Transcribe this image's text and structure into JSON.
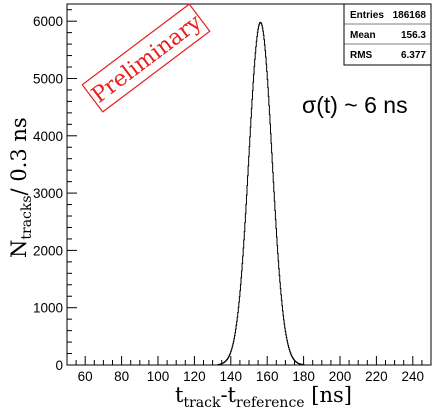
{
  "chart_data": {
    "type": "bar",
    "style": "step-histogram",
    "xlabel": {
      "main": "t",
      "sub1": "track",
      "sep": "-t",
      "sub2": "reference",
      "unit": " [ns]"
    },
    "ylabel": {
      "main": "N",
      "sub": "tracks",
      "unit": "/ 0.3 ns"
    },
    "xlim": [
      50,
      250
    ],
    "ylim": [
      0,
      6300
    ],
    "x_ticks": [
      60,
      80,
      100,
      120,
      140,
      160,
      180,
      200,
      220,
      240
    ],
    "y_ticks": [
      0,
      1000,
      2000,
      3000,
      4000,
      5000,
      6000
    ],
    "y_tick_labels": [
      "0",
      "1000",
      "2000",
      "3000",
      "4000",
      "5000",
      "6000"
    ],
    "x_tick_labels": [
      "60",
      "80",
      "100",
      "120",
      "140",
      "160",
      "180",
      "200",
      "220",
      "240"
    ],
    "bin_width": 0.3,
    "grid": false,
    "line_color": "#000000",
    "series": [
      {
        "shape": "gaussian",
        "mean": 156.3,
        "rms": 6.377,
        "peak": 5980,
        "range": [
          133,
          180
        ]
      }
    ],
    "stats_box": {
      "rows": [
        {
          "label": "Entries",
          "value": "186168"
        },
        {
          "label": "Mean",
          "value": "156.3"
        },
        {
          "label": "RMS",
          "value": "6.377"
        }
      ]
    },
    "annotations": {
      "stamp": "Preliminary",
      "stamp_color": "#e8201c",
      "resolution": "σ(t) ~ 6 ns"
    }
  }
}
